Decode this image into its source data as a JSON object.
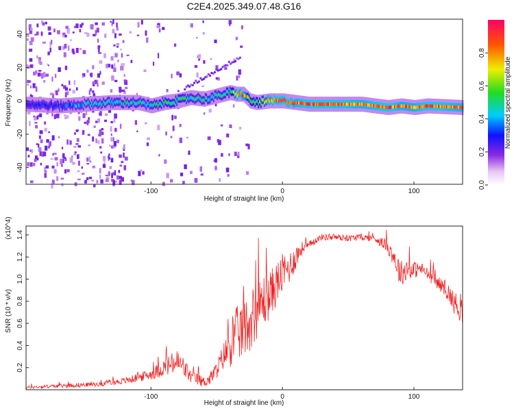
{
  "title": "C2E4.2025.349.07.48.G16",
  "chart_data": [
    {
      "type": "heatmap",
      "xlabel": "Height of straight line (km)",
      "ylabel": "Frequency (Hz)",
      "xlim": [
        -195,
        137
      ],
      "ylim": [
        -50,
        49
      ],
      "xticks": [
        -100,
        0,
        100
      ],
      "xtick_labels": [
        "-100",
        "0",
        "100"
      ],
      "yticks": [
        -40,
        -20,
        0,
        20,
        40
      ],
      "ytick_labels": [
        "-40",
        "-20",
        "0",
        "20",
        "40"
      ],
      "colorbar": {
        "label": "Normalized spectral amplitude",
        "range": [
          0,
          1
        ],
        "ticks": [
          0.0,
          0.2,
          0.4,
          0.6,
          0.8
        ],
        "tick_labels": [
          "0.0",
          "0.2",
          "0.4",
          "0.6",
          "0.8"
        ]
      },
      "ridge": {
        "x": [
          -195,
          -170,
          -150,
          -130,
          -110,
          -100,
          -90,
          -80,
          -70,
          -60,
          -50,
          -40,
          -35,
          -30,
          -25,
          -20,
          -10,
          0,
          10,
          20,
          40,
          60,
          80,
          90,
          100,
          110,
          137
        ],
        "freq": [
          -2,
          -3,
          -2,
          -1,
          -1,
          -3,
          -1,
          0,
          2,
          1,
          3,
          5,
          4,
          4,
          0,
          -1,
          0,
          0,
          -1,
          -2,
          -2,
          -2,
          -4,
          -3,
          -4,
          -3,
          -4
        ],
        "amplitude": [
          0.3,
          0.35,
          0.45,
          0.5,
          0.5,
          0.5,
          0.55,
          0.55,
          0.5,
          0.5,
          0.5,
          0.55,
          0.9,
          0.9,
          0.6,
          0.6,
          0.9,
          0.95,
          0.9,
          0.95,
          0.95,
          0.9,
          0.95,
          0.9,
          0.9,
          0.95,
          0.9
        ]
      }
    },
    {
      "type": "line",
      "xlabel": "Height of straight line (km)",
      "ylabel": "SNR (10 * v/v)",
      "y_multiplier": "(x10^4)",
      "xlim": [
        -195,
        137
      ],
      "ylim": [
        0,
        1.48
      ],
      "xticks": [
        -100,
        0,
        100
      ],
      "xtick_labels": [
        "-100",
        "0",
        "100"
      ],
      "yticks": [
        0.2,
        0.4,
        0.6,
        0.8,
        1.0,
        1.2,
        1.4
      ],
      "ytick_labels": [
        "0.2",
        "0.4",
        "0.6",
        "0.8",
        "1.0",
        "1.2",
        "1.4"
      ],
      "series": [
        {
          "name": "SNR",
          "color": "#ee2222",
          "x": [
            -195,
            -180,
            -160,
            -140,
            -120,
            -100,
            -90,
            -80,
            -75,
            -70,
            -60,
            -55,
            -50,
            -45,
            -40,
            -35,
            -30,
            -25,
            -20,
            -15,
            -10,
            -5,
            0,
            5,
            10,
            15,
            20,
            25,
            30,
            40,
            50,
            60,
            70,
            80,
            85,
            88,
            90,
            95,
            100,
            105,
            110,
            115,
            120,
            125,
            130,
            133,
            137
          ],
          "mean": [
            0.02,
            0.03,
            0.04,
            0.05,
            0.08,
            0.14,
            0.2,
            0.25,
            0.2,
            0.12,
            0.07,
            0.1,
            0.18,
            0.3,
            0.4,
            0.5,
            0.55,
            0.6,
            0.7,
            0.8,
            0.85,
            0.95,
            1.05,
            1.1,
            1.2,
            1.28,
            1.3,
            1.35,
            1.38,
            1.38,
            1.37,
            1.38,
            1.37,
            1.3,
            1.2,
            1.1,
            1.05,
            1.1,
            1.08,
            1.1,
            1.05,
            1.0,
            0.95,
            0.9,
            0.8,
            0.75,
            0.72
          ],
          "noise": [
            0.015,
            0.015,
            0.02,
            0.02,
            0.03,
            0.05,
            0.08,
            0.12,
            0.1,
            0.06,
            0.05,
            0.06,
            0.08,
            0.12,
            0.2,
            0.25,
            0.28,
            0.25,
            0.25,
            0.25,
            0.22,
            0.2,
            0.18,
            0.15,
            0.12,
            0.06,
            0.04,
            0.03,
            0.03,
            0.03,
            0.03,
            0.03,
            0.03,
            0.06,
            0.1,
            0.12,
            0.12,
            0.1,
            0.08,
            0.06,
            0.06,
            0.06,
            0.06,
            0.08,
            0.1,
            0.12,
            0.12
          ]
        }
      ]
    }
  ]
}
